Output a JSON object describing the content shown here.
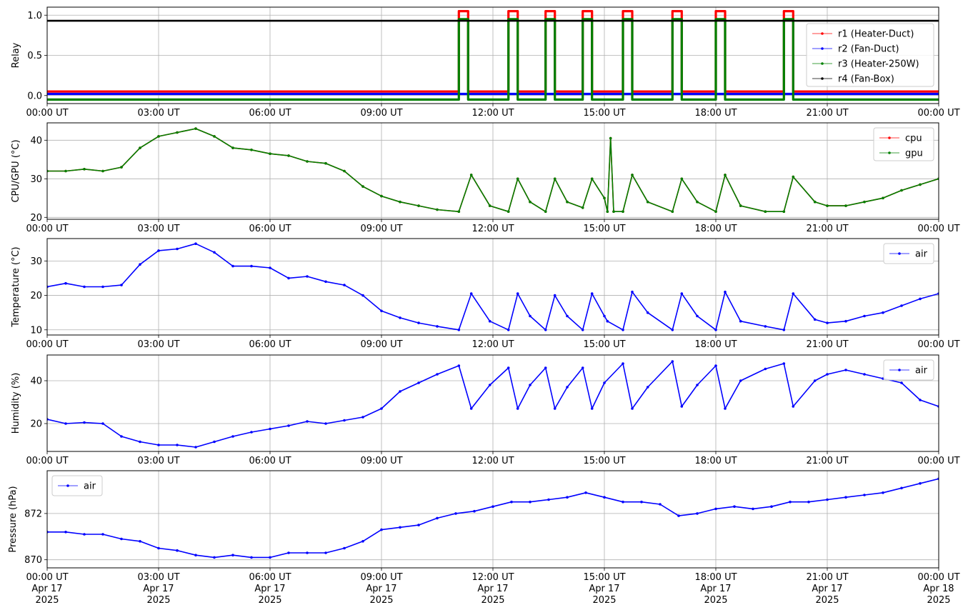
{
  "colors": {
    "r1": "#ff0000",
    "r2": "#0000ff",
    "r3": "#008000",
    "r4": "#000000",
    "cpu": "#ff0000",
    "gpu": "#008000",
    "air": "#0000ff",
    "grid": "#b0b0b0"
  },
  "x_ticks": [
    "00:00 UT",
    "03:00 UT",
    "06:00 UT",
    "09:00 UT",
    "12:00 UT",
    "15:00 UT",
    "18:00 UT",
    "21:00 UT",
    "00:00 UT"
  ],
  "x_tick_dates": [
    "Apr 17",
    "Apr 17",
    "Apr 17",
    "Apr 17",
    "Apr 17",
    "Apr 17",
    "Apr 17",
    "Apr 17",
    "Apr 18"
  ],
  "x_tick_years": [
    "2025",
    "2025",
    "2025",
    "2025",
    "2025",
    "2025",
    "2025",
    "2025",
    "2025"
  ],
  "chart_data": [
    {
      "type": "line",
      "ylabel": "Relay",
      "xlim": [
        "2025-04-17 00:00 UT",
        "2025-04-18 00:00 UT"
      ],
      "ylim": [
        -0.1,
        1.1
      ],
      "yticks": [
        "0.0",
        "0.5",
        "1.0"
      ],
      "grid": true,
      "legend": "right",
      "x": [
        "00:00",
        "11:05",
        "11:20",
        "12:25",
        "12:40",
        "13:25",
        "13:40",
        "14:25",
        "14:40",
        "15:30",
        "15:45",
        "16:50",
        "17:05",
        "18:00",
        "18:15",
        "19:50",
        "20:05",
        "24:00"
      ],
      "series": [
        {
          "name": "r1 (Heater-Duct)",
          "values": [
            0.05,
            1.05,
            0.05,
            1.05,
            0.05,
            1.05,
            0.05,
            1.05,
            0.05,
            1.05,
            0.05,
            1.05,
            0.05,
            1.05,
            0.05,
            1.05,
            0.05,
            0.05
          ]
        },
        {
          "name": "r2 (Fan-Duct)",
          "values": [
            0.02,
            0.02,
            0.02,
            0.02,
            0.02,
            0.02,
            0.02,
            0.02,
            0.02,
            0.02,
            0.02,
            0.02,
            0.02,
            0.02,
            0.02,
            0.02,
            0.02,
            0.02
          ]
        },
        {
          "name": "r3 (Heater-250W)",
          "values": [
            -0.05,
            0.95,
            -0.05,
            0.95,
            -0.05,
            0.95,
            -0.05,
            0.95,
            -0.05,
            0.95,
            -0.05,
            0.95,
            -0.05,
            0.95,
            -0.05,
            0.95,
            -0.05,
            -0.05
          ]
        },
        {
          "name": "r4 (Fan-Box)",
          "values": [
            0.93,
            0.93,
            0.93,
            0.93,
            0.93,
            0.93,
            0.93,
            0.93,
            0.93,
            0.93,
            0.93,
            0.93,
            0.93,
            0.93,
            0.93,
            0.93,
            0.93,
            0.93
          ]
        }
      ]
    },
    {
      "type": "line",
      "ylabel": "CPU/GPU (°C)",
      "xlim": [
        "2025-04-17 00:00 UT",
        "2025-04-18 00:00 UT"
      ],
      "ylim": [
        19.5,
        44.5
      ],
      "yticks": [
        "20",
        "30",
        "40"
      ],
      "grid": true,
      "legend": "top-right",
      "x": [
        "00:00",
        "00:30",
        "01:00",
        "01:30",
        "02:00",
        "02:30",
        "03:00",
        "03:30",
        "04:00",
        "04:30",
        "05:00",
        "05:30",
        "06:00",
        "06:30",
        "07:00",
        "07:30",
        "08:00",
        "08:30",
        "09:00",
        "09:30",
        "10:00",
        "10:30",
        "11:05",
        "11:25",
        "11:55",
        "12:25",
        "12:40",
        "13:00",
        "13:25",
        "13:40",
        "14:00",
        "14:25",
        "14:40",
        "15:00",
        "15:05",
        "15:10",
        "15:15",
        "15:30",
        "15:45",
        "16:10",
        "16:50",
        "17:05",
        "17:30",
        "18:00",
        "18:15",
        "18:40",
        "19:20",
        "19:50",
        "20:05",
        "20:40",
        "21:00",
        "21:30",
        "22:00",
        "22:30",
        "23:00",
        "23:30",
        "24:00"
      ],
      "series": [
        {
          "name": "cpu",
          "values": [
            32,
            32,
            32.5,
            32,
            33,
            38,
            41,
            42,
            43,
            41,
            38,
            37.5,
            36.5,
            36,
            34.5,
            34,
            32,
            28,
            25.5,
            24,
            23,
            22,
            21.5,
            31,
            23,
            21.5,
            30,
            24,
            21.5,
            30,
            24,
            22.5,
            30,
            25,
            21.5,
            40.5,
            21.5,
            21.5,
            31,
            24,
            21.5,
            30,
            24,
            21.5,
            31,
            23,
            21.5,
            21.5,
            30.5,
            24,
            23,
            23,
            24,
            25,
            27,
            28.5,
            30
          ]
        },
        {
          "name": "gpu",
          "values": [
            32,
            32,
            32.5,
            32,
            33,
            38,
            41,
            42,
            43,
            41,
            38,
            37.5,
            36.5,
            36,
            34.5,
            34,
            32,
            28,
            25.5,
            24,
            23,
            22,
            21.5,
            31,
            23,
            21.5,
            30,
            24,
            21.5,
            30,
            24,
            22.5,
            30,
            25,
            21.5,
            40.5,
            21.5,
            21.5,
            31,
            24,
            21.5,
            30,
            24,
            21.5,
            31,
            23,
            21.5,
            21.5,
            30.5,
            24,
            23,
            23,
            24,
            25,
            27,
            28.5,
            30
          ]
        }
      ]
    },
    {
      "type": "scatter",
      "ylabel": "Temperature (°C)",
      "xlim": [
        "2025-04-17 00:00 UT",
        "2025-04-18 00:00 UT"
      ],
      "ylim": [
        8.5,
        36.5
      ],
      "yticks": [
        "10",
        "20",
        "30"
      ],
      "grid": true,
      "legend": "top-right",
      "x": [
        "00:00",
        "00:30",
        "01:00",
        "01:30",
        "02:00",
        "02:30",
        "03:00",
        "03:30",
        "04:00",
        "04:30",
        "05:00",
        "05:30",
        "06:00",
        "06:30",
        "07:00",
        "07:30",
        "08:00",
        "08:30",
        "09:00",
        "09:30",
        "10:00",
        "10:30",
        "11:05",
        "11:25",
        "11:55",
        "12:25",
        "12:40",
        "13:00",
        "13:25",
        "13:40",
        "14:00",
        "14:25",
        "14:40",
        "15:00",
        "15:05",
        "15:30",
        "15:45",
        "16:10",
        "16:50",
        "17:05",
        "17:30",
        "18:00",
        "18:15",
        "18:40",
        "19:20",
        "19:50",
        "20:05",
        "20:40",
        "21:00",
        "21:30",
        "22:00",
        "22:30",
        "23:00",
        "23:30",
        "24:00"
      ],
      "series": [
        {
          "name": "air",
          "values": [
            22.5,
            23.5,
            22.5,
            22.5,
            23,
            29,
            33,
            33.5,
            35,
            32.5,
            28.5,
            28.5,
            28,
            25,
            25.5,
            24,
            23,
            20,
            15.5,
            13.5,
            12,
            11,
            10,
            20.5,
            12.5,
            10,
            20.5,
            14,
            10,
            20,
            14,
            10,
            20.5,
            14,
            12.5,
            10,
            21,
            15,
            10,
            20.5,
            14,
            10,
            21,
            12.5,
            11,
            10,
            20.5,
            13,
            12,
            12.5,
            14,
            15,
            17,
            19,
            20.5
          ]
        }
      ]
    },
    {
      "type": "scatter",
      "ylabel": "Humidity (%)",
      "xlim": [
        "2025-04-17 00:00 UT",
        "2025-04-18 00:00 UT"
      ],
      "ylim": [
        7,
        52
      ],
      "yticks": [
        "20",
        "40"
      ],
      "grid": true,
      "legend": "top-right",
      "x": [
        "00:00",
        "00:30",
        "01:00",
        "01:30",
        "02:00",
        "02:30",
        "03:00",
        "03:30",
        "04:00",
        "04:30",
        "05:00",
        "05:30",
        "06:00",
        "06:30",
        "07:00",
        "07:30",
        "08:00",
        "08:30",
        "09:00",
        "09:30",
        "10:00",
        "10:30",
        "11:05",
        "11:25",
        "11:55",
        "12:25",
        "12:40",
        "13:00",
        "13:25",
        "13:40",
        "14:00",
        "14:25",
        "14:40",
        "15:00",
        "15:30",
        "15:45",
        "16:10",
        "16:50",
        "17:05",
        "17:30",
        "18:00",
        "18:15",
        "18:40",
        "19:20",
        "19:50",
        "20:05",
        "20:40",
        "21:00",
        "21:30",
        "22:00",
        "22:30",
        "23:00",
        "23:30",
        "24:00"
      ],
      "series": [
        {
          "name": "air",
          "values": [
            22,
            20,
            20.5,
            20,
            14,
            11.5,
            10,
            10,
            9,
            11.5,
            14,
            16,
            17.5,
            19,
            21,
            20,
            21.5,
            23,
            27,
            35,
            39,
            43,
            47,
            27,
            38,
            46,
            27,
            38,
            46,
            27,
            37,
            46,
            27,
            39,
            48,
            27,
            37,
            49,
            28,
            38,
            47,
            27,
            40,
            45.5,
            48,
            28,
            40,
            43,
            45,
            43,
            41,
            39,
            31,
            28
          ]
        }
      ]
    },
    {
      "type": "scatter",
      "ylabel": "Pressure (hPa)",
      "xlim": [
        "2025-04-17 00:00 UT",
        "2025-04-18 00:00 UT"
      ],
      "ylim": [
        869.65,
        873.85
      ],
      "yticks": [
        "870",
        "872"
      ],
      "grid": true,
      "legend": "top-left",
      "x": [
        "00:00",
        "00:30",
        "01:00",
        "01:30",
        "02:00",
        "02:30",
        "03:00",
        "03:30",
        "04:00",
        "04:30",
        "05:00",
        "05:30",
        "06:00",
        "06:30",
        "07:00",
        "07:30",
        "08:00",
        "08:30",
        "09:00",
        "09:30",
        "10:00",
        "10:30",
        "11:00",
        "11:30",
        "12:00",
        "12:30",
        "13:00",
        "13:30",
        "14:00",
        "14:30",
        "15:00",
        "15:30",
        "16:00",
        "16:30",
        "17:00",
        "17:30",
        "18:00",
        "18:30",
        "19:00",
        "19:30",
        "20:00",
        "20:30",
        "21:00",
        "21:30",
        "22:00",
        "22:30",
        "23:00",
        "23:30",
        "24:00"
      ],
      "series": [
        {
          "name": "air",
          "values": [
            871.2,
            871.2,
            871.1,
            871.1,
            870.9,
            870.8,
            870.5,
            870.4,
            870.2,
            870.1,
            870.2,
            870.1,
            870.1,
            870.3,
            870.3,
            870.3,
            870.5,
            870.8,
            871.3,
            871.4,
            871.5,
            871.8,
            872.0,
            872.1,
            872.3,
            872.5,
            872.5,
            872.6,
            872.7,
            872.9,
            872.7,
            872.5,
            872.5,
            872.4,
            871.9,
            872.0,
            872.2,
            872.3,
            872.2,
            872.3,
            872.5,
            872.5,
            872.6,
            872.7,
            872.8,
            872.9,
            873.1,
            873.3,
            873.5
          ]
        }
      ]
    }
  ]
}
